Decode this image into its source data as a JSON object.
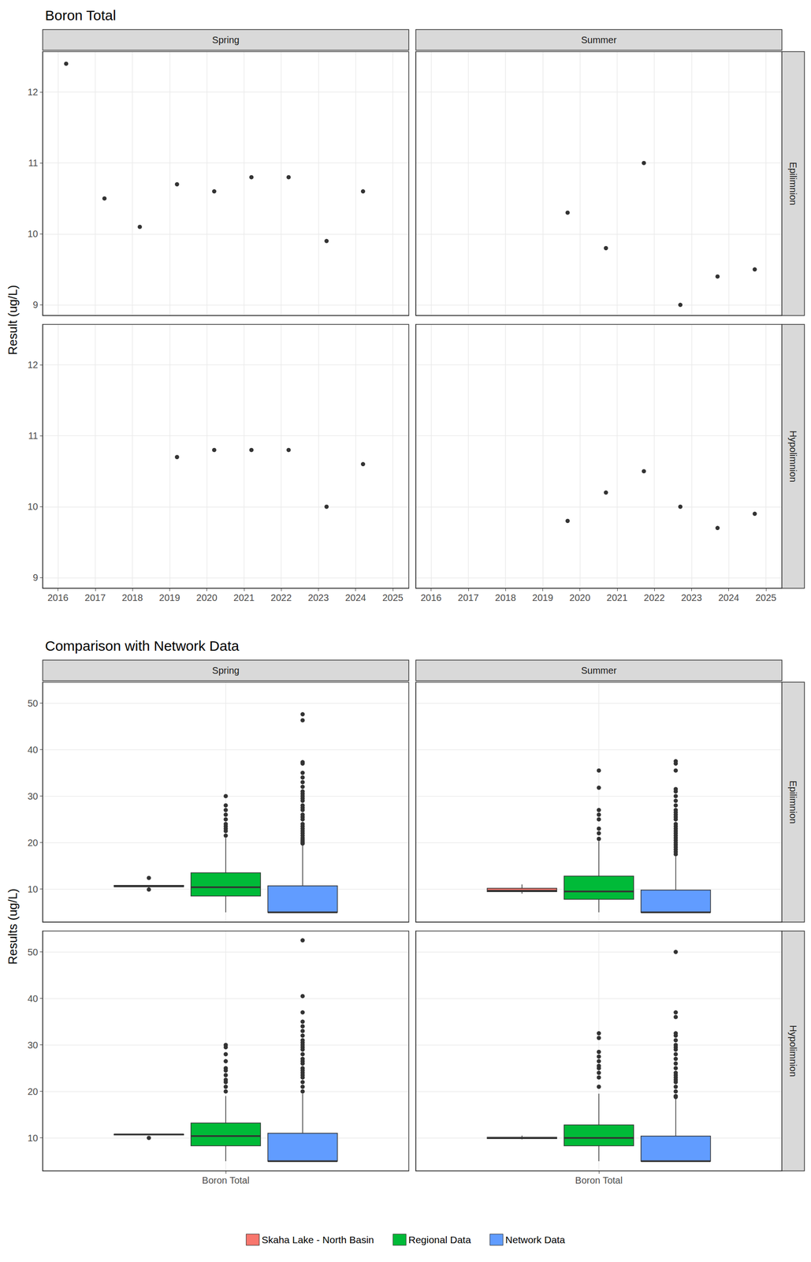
{
  "chart_data": [
    {
      "type": "scatter",
      "title": "Boron Total",
      "y_label": "Result (ug/L)",
      "columns": [
        "Spring",
        "Summer"
      ],
      "rows": [
        "Epilimnion",
        "Hypolimnion"
      ],
      "xlim": [
        2015.59,
        2025.43
      ],
      "xticks": [
        2016,
        2017,
        2018,
        2019,
        2020,
        2021,
        2022,
        2023,
        2024,
        2025
      ],
      "ylim": [
        8.85,
        12.57
      ],
      "yticks": [
        9,
        10,
        11,
        12
      ],
      "grid": true,
      "color": "#000000",
      "marker": "circle",
      "panels": [
        {
          "column": "Spring",
          "row": "Epilimnion",
          "x": [
            2016.22,
            2017.25,
            2018.2,
            2019.2,
            2020.2,
            2021.2,
            2022.2,
            2023.22,
            2024.2
          ],
          "values": [
            12.4,
            10.5,
            10.1,
            10.7,
            10.6,
            10.8,
            10.8,
            9.9,
            10.6
          ]
        },
        {
          "column": "Summer",
          "row": "Epilimnion",
          "x": [
            2019.67,
            2020.7,
            2021.72,
            2022.7,
            2023.7,
            2024.7
          ],
          "values": [
            10.3,
            9.8,
            11.0,
            9.0,
            9.4,
            9.5
          ]
        },
        {
          "column": "Spring",
          "row": "Hypolimnion",
          "x": [
            2019.2,
            2020.2,
            2021.2,
            2022.2,
            2023.22,
            2024.2
          ],
          "values": [
            10.7,
            10.8,
            10.8,
            10.8,
            10.0,
            10.6
          ]
        },
        {
          "column": "Summer",
          "row": "Hypolimnion",
          "x": [
            2019.67,
            2020.7,
            2021.72,
            2022.7,
            2023.7,
            2024.7
          ],
          "values": [
            9.8,
            10.2,
            10.5,
            10.0,
            9.7,
            9.9
          ]
        }
      ]
    },
    {
      "type": "boxplot",
      "title": "Comparison with Network Data",
      "y_label": "Results (ug/L)",
      "columns": [
        "Spring",
        "Summer"
      ],
      "rows": [
        "Epilimnion",
        "Hypolimnion"
      ],
      "categories": [
        "Boron Total"
      ],
      "ylim": [
        2.9,
        54.5
      ],
      "yticks": [
        10,
        20,
        30,
        40,
        50
      ],
      "grid": true,
      "legend": "bottom",
      "series": [
        {
          "name": "Skaha Lake - North Basin",
          "color": "#F8766D"
        },
        {
          "name": "Regional Data",
          "color": "#00BA38"
        },
        {
          "name": "Network Data",
          "color": "#619CFF"
        }
      ],
      "panels": [
        {
          "column": "Spring",
          "row": "Epilimnion",
          "boxes": [
            {
              "min": 10.1,
              "q1": 10.5,
              "median": 10.6,
              "q3": 10.8,
              "max": 10.8,
              "outliers": [
                9.9,
                12.4
              ]
            },
            {
              "min": 5.0,
              "q1": 8.5,
              "median": 10.4,
              "q3": 13.5,
              "max": 21.0,
              "outliers": [
                21.5,
                22.5,
                23.0,
                23.5,
                24.0,
                25.0,
                26.0,
                27.0,
                28.0,
                30.0
              ]
            },
            {
              "min": 5.0,
              "q1": 5.0,
              "median": 5.0,
              "q3": 10.7,
              "max": 19.5,
              "outliers": [
                19.8,
                20.0,
                20.3,
                20.6,
                21.0,
                21.5,
                22.0,
                22.5,
                23.0,
                23.5,
                24.0,
                25.0,
                25.5,
                26.0,
                27.0,
                27.5,
                28.0,
                29.0,
                29.5,
                30.0,
                30.5,
                31.0,
                32.0,
                33.0,
                34.0,
                35.0,
                37.0,
                37.3,
                46.3,
                47.6
              ]
            }
          ]
        },
        {
          "column": "Summer",
          "row": "Epilimnion",
          "boxes": [
            {
              "min": 9.0,
              "q1": 9.45,
              "median": 9.65,
              "q3": 10.18,
              "max": 11.0,
              "outliers": []
            },
            {
              "min": 5.0,
              "q1": 7.8,
              "median": 9.5,
              "q3": 12.8,
              "max": 20.3,
              "outliers": [
                20.8,
                22.0,
                23.0,
                25.0,
                26.0,
                27.0,
                31.8,
                35.5
              ]
            },
            {
              "min": 5.0,
              "q1": 5.0,
              "median": 5.0,
              "q3": 9.8,
              "max": 17.0,
              "outliers": [
                17.5,
                18.0,
                18.5,
                19.0,
                19.5,
                20.0,
                20.5,
                21.0,
                21.5,
                22.0,
                22.5,
                23.0,
                23.5,
                24.0,
                25.0,
                25.5,
                26.0,
                26.5,
                27.0,
                28.0,
                29.0,
                30.0,
                31.0,
                31.5,
                35.5,
                37.0,
                37.5
              ]
            }
          ]
        },
        {
          "column": "Spring",
          "row": "Hypolimnion",
          "boxes": [
            {
              "min": 10.6,
              "q1": 10.63,
              "median": 10.75,
              "q3": 10.8,
              "max": 10.8,
              "outliers": [
                10.0
              ]
            },
            {
              "min": 5.0,
              "q1": 8.3,
              "median": 10.4,
              "q3": 13.2,
              "max": 19.0,
              "outliers": [
                20.0,
                21.0,
                22.0,
                22.5,
                23.5,
                24.5,
                25.0,
                26.5,
                28.0,
                29.5,
                30.0
              ]
            },
            {
              "min": 5.0,
              "q1": 5.0,
              "median": 5.0,
              "q3": 11.0,
              "max": 19.5,
              "outliers": [
                20.0,
                20.5,
                21.0,
                21.5,
                22.0,
                23.0,
                23.5,
                24.0,
                24.5,
                25.0,
                26.0,
                26.5,
                27.0,
                28.0,
                29.0,
                29.5,
                30.0,
                30.5,
                31.0,
                32.0,
                33.0,
                34.0,
                35.0,
                37.0,
                40.5,
                52.5
              ]
            }
          ]
        },
        {
          "column": "Summer",
          "row": "Hypolimnion",
          "boxes": [
            {
              "min": 9.7,
              "q1": 9.83,
              "median": 9.95,
              "q3": 10.15,
              "max": 10.5,
              "outliers": []
            },
            {
              "min": 5.0,
              "q1": 8.3,
              "median": 10.0,
              "q3": 12.8,
              "max": 19.5,
              "outliers": [
                20.5,
                21.0,
                21.5,
                23.0,
                24.0,
                25.0,
                25.5,
                26.5,
                27.5,
                28.5,
                31.5,
                32.5
              ]
            },
            {
              "min": 5.0,
              "q1": 5.0,
              "median": 5.0,
              "q3": 10.4,
              "max": 18.5,
              "outliers": [
                18.8,
                19.0,
                19.5,
                20.0,
                20.5,
                21.0,
                21.5,
                22.0,
                22.5,
                23.0,
                23.5,
                24.0,
                25.0,
                26.0,
                27.0,
                28.0,
                29.0,
                29.5,
                30.0,
                31.0,
                32.0,
                32.5,
                36.0,
                37.0,
                50.0
              ]
            }
          ]
        }
      ]
    }
  ]
}
